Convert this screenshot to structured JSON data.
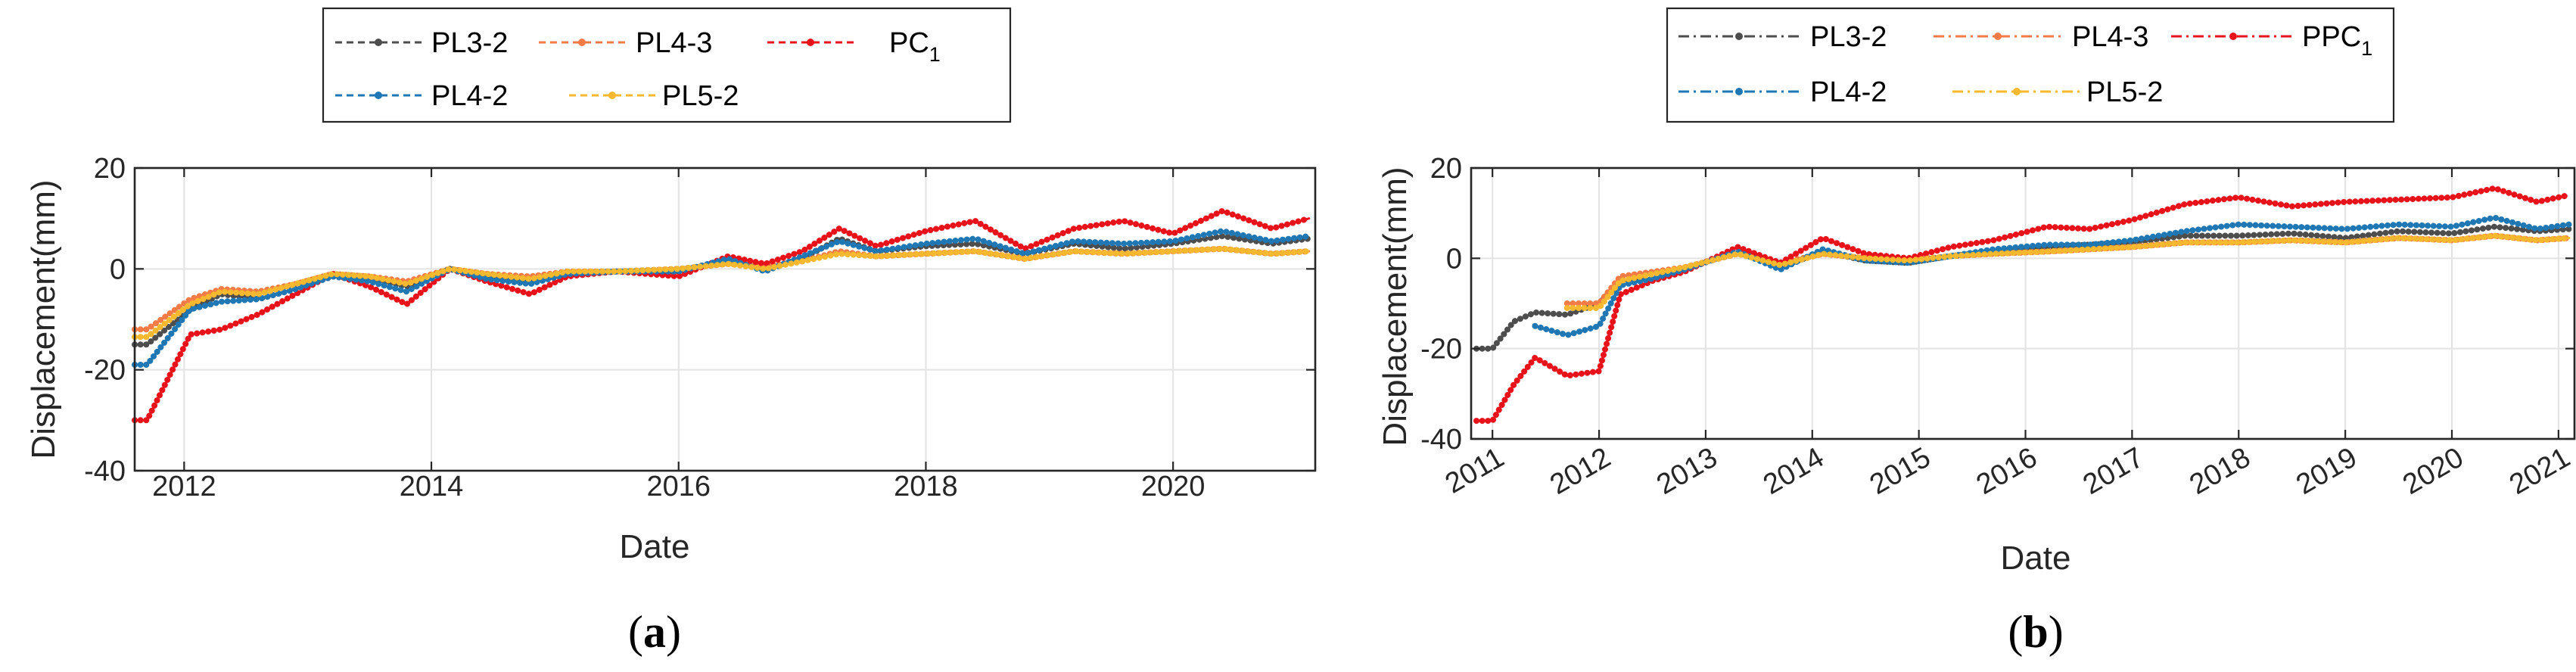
{
  "chart_data": [
    {
      "type": "line",
      "panel_label": "a",
      "title": "",
      "xlabel": "Date",
      "ylabel": "Displacement(mm)",
      "xlim": [
        2011.6,
        2021.15
      ],
      "ylim": [
        -40,
        20
      ],
      "xticks": [
        2012,
        2014,
        2016,
        2018,
        2020
      ],
      "xtick_labels": [
        "2012",
        "2014",
        "2016",
        "2018",
        "2020"
      ],
      "yticks": [
        -40,
        -20,
        0,
        20
      ],
      "ytick_labels": [
        "-40",
        "-20",
        "0",
        "20"
      ],
      "grid": true,
      "legend_position": "top",
      "series": [
        {
          "name": "PL3-2",
          "color": "#4d4d4d",
          "x": [
            2011.6,
            2011.7,
            2012.05,
            2012.3,
            2012.6,
            2012.9,
            2013.2,
            2013.5,
            2013.8,
            2014.15,
            2014.45,
            2014.8,
            2015.1,
            2015.5,
            2016.0,
            2016.4,
            2016.7,
            2017.0,
            2017.3,
            2017.6,
            2018.0,
            2018.4,
            2018.8,
            2019.2,
            2019.6,
            2020.0,
            2020.4,
            2020.8,
            2021.1
          ],
          "y": [
            -15.0,
            -15.0,
            -8.0,
            -5.0,
            -6.0,
            -4.0,
            -1.5,
            -2.0,
            -3.5,
            0.0,
            -1.5,
            -2.5,
            -1.0,
            -0.5,
            -0.5,
            1.5,
            0.0,
            2.0,
            6.0,
            3.5,
            4.5,
            5.0,
            3.0,
            5.0,
            4.0,
            5.0,
            6.5,
            5.0,
            6.0
          ]
        },
        {
          "name": "PL4-3",
          "color": "#f47b45",
          "x": [
            2011.6,
            2011.7,
            2012.05,
            2012.3,
            2012.6,
            2012.9,
            2013.2,
            2013.5,
            2013.8,
            2014.15,
            2014.45,
            2014.8,
            2015.1,
            2015.5,
            2016.0,
            2016.4,
            2016.7,
            2017.0,
            2017.3,
            2017.6,
            2018.0,
            2018.4,
            2018.8,
            2019.2,
            2019.6,
            2020.0,
            2020.4,
            2020.8,
            2021.1
          ],
          "y": [
            -12.0,
            -12.0,
            -6.0,
            -4.0,
            -4.5,
            -3.0,
            -1.0,
            -1.5,
            -2.5,
            0.0,
            -1.0,
            -1.5,
            -0.5,
            -0.5,
            0.0,
            1.0,
            0.5,
            1.5,
            3.5,
            2.5,
            3.0,
            3.5,
            2.0,
            3.5,
            3.0,
            3.5,
            4.0,
            3.0,
            3.5
          ]
        },
        {
          "name": "PC",
          "name_subscript": "1",
          "color": "#e8121b",
          "x": [
            2011.6,
            2011.7,
            2012.05,
            2012.3,
            2012.6,
            2012.9,
            2013.2,
            2013.5,
            2013.8,
            2014.15,
            2014.45,
            2014.8,
            2015.1,
            2015.5,
            2016.0,
            2016.4,
            2016.7,
            2017.0,
            2017.3,
            2017.6,
            2018.0,
            2018.4,
            2018.8,
            2019.2,
            2019.6,
            2020.0,
            2020.4,
            2020.8,
            2021.1
          ],
          "y": [
            -30.0,
            -30.0,
            -13.0,
            -12.0,
            -9.0,
            -5.0,
            -1.0,
            -3.5,
            -7.0,
            0.0,
            -2.5,
            -5.0,
            -1.5,
            -0.5,
            -1.5,
            2.5,
            1.0,
            3.5,
            8.0,
            4.5,
            7.5,
            9.5,
            4.0,
            8.0,
            9.5,
            7.0,
            11.5,
            8.0,
            10.0
          ]
        },
        {
          "name": "PL4-2",
          "color": "#1f77b4",
          "x": [
            2011.6,
            2011.7,
            2012.05,
            2012.3,
            2012.6,
            2012.9,
            2013.2,
            2013.5,
            2013.8,
            2014.15,
            2014.45,
            2014.8,
            2015.1,
            2015.5,
            2016.0,
            2016.4,
            2016.7,
            2017.0,
            2017.3,
            2017.6,
            2018.0,
            2018.4,
            2018.8,
            2019.2,
            2019.6,
            2020.0,
            2020.4,
            2020.8,
            2021.1
          ],
          "y": [
            -19.0,
            -19.0,
            -8.0,
            -6.5,
            -6.0,
            -4.0,
            -1.5,
            -2.5,
            -4.5,
            0.0,
            -2.0,
            -3.0,
            -1.0,
            -0.5,
            -0.5,
            2.0,
            -0.5,
            2.5,
            5.5,
            3.5,
            5.0,
            6.0,
            3.0,
            5.5,
            5.0,
            5.5,
            7.5,
            5.5,
            6.5
          ]
        },
        {
          "name": "PL5-2",
          "color": "#f5b82e",
          "x": [
            2011.6,
            2011.7,
            2012.05,
            2012.3,
            2012.6,
            2012.9,
            2013.2,
            2013.5,
            2013.8,
            2014.15,
            2014.45,
            2014.8,
            2015.1,
            2015.5,
            2016.0,
            2016.4,
            2016.7,
            2017.0,
            2017.3,
            2017.6,
            2018.0,
            2018.4,
            2018.8,
            2019.2,
            2019.6,
            2020.0,
            2020.4,
            2020.8,
            2021.1
          ],
          "y": [
            -13.5,
            -13.5,
            -7.0,
            -4.5,
            -5.0,
            -3.0,
            -1.0,
            -1.5,
            -3.0,
            0.0,
            -1.0,
            -2.0,
            -0.5,
            -0.5,
            0.0,
            1.0,
            0.0,
            1.5,
            3.0,
            2.5,
            3.0,
            3.5,
            2.0,
            3.5,
            3.0,
            3.5,
            4.0,
            3.0,
            3.5
          ]
        }
      ]
    },
    {
      "type": "line",
      "panel_label": "b",
      "title": "",
      "xlabel": "Date",
      "ylabel": "Displacement(mm)",
      "xlim": [
        2010.8,
        2021.15
      ],
      "ylim": [
        -40,
        20
      ],
      "xticks": [
        2011,
        2012,
        2013,
        2014,
        2015,
        2016,
        2017,
        2018,
        2019,
        2020,
        2021
      ],
      "xtick_labels": [
        "2011",
        "2012",
        "2013",
        "2014",
        "2015",
        "2016",
        "2017",
        "2018",
        "2019",
        "2020",
        "2021"
      ],
      "yticks": [
        -40,
        -20,
        0,
        20
      ],
      "ytick_labels": [
        "-40",
        "-20",
        "0",
        "20"
      ],
      "grid": true,
      "legend_position": "top",
      "series": [
        {
          "name": "PL3-2",
          "color": "#4d4d4d",
          "x": [
            2010.85,
            2011.0,
            2011.2,
            2011.4,
            2011.7,
            2012.0,
            2012.2,
            2012.5,
            2012.8,
            2013.3,
            2013.7,
            2014.1,
            2014.5,
            2014.9,
            2015.3,
            2015.7,
            2016.2,
            2016.6,
            2017.0,
            2017.5,
            2018.0,
            2018.5,
            2019.0,
            2019.5,
            2020.0,
            2020.4,
            2020.8,
            2021.1
          ],
          "y": [
            -20.0,
            -20.0,
            -14.0,
            -12.0,
            -12.5,
            -10.0,
            -5.0,
            -4.5,
            -2.5,
            1.5,
            -2.0,
            1.5,
            -0.5,
            -1.0,
            0.5,
            1.5,
            2.5,
            3.0,
            3.5,
            5.0,
            5.0,
            5.5,
            4.5,
            6.0,
            5.5,
            7.0,
            6.0,
            6.5
          ]
        },
        {
          "name": "PL4-3",
          "color": "#f47b45",
          "x": [
            2010.85,
            2011.0,
            2011.2,
            2011.4,
            2011.7,
            2012.0,
            2012.2,
            2012.5,
            2012.8,
            2013.3,
            2013.7,
            2014.1,
            2014.5,
            2014.9,
            2015.3,
            2015.7,
            2016.2,
            2016.6,
            2017.0,
            2017.5,
            2018.0,
            2018.5,
            2019.0,
            2019.5,
            2020.0,
            2020.4,
            2020.8,
            2021.1
          ],
          "y": [
            null,
            null,
            null,
            null,
            -10.0,
            -10.0,
            -4.0,
            -3.0,
            -2.0,
            1.0,
            -1.0,
            1.0,
            0.0,
            -0.5,
            0.5,
            1.0,
            1.5,
            2.0,
            2.5,
            3.5,
            3.5,
            4.0,
            3.5,
            4.5,
            4.0,
            5.0,
            4.0,
            4.5
          ]
        },
        {
          "name": "PPC",
          "name_subscript": "1",
          "color": "#e8121b",
          "x": [
            2010.85,
            2011.0,
            2011.2,
            2011.4,
            2011.7,
            2012.0,
            2012.2,
            2012.5,
            2012.8,
            2013.3,
            2013.7,
            2014.1,
            2014.5,
            2014.9,
            2015.3,
            2015.7,
            2016.2,
            2016.6,
            2017.0,
            2017.5,
            2018.0,
            2018.5,
            2019.0,
            2019.5,
            2020.0,
            2020.4,
            2020.8,
            2021.1
          ],
          "y": [
            -36.0,
            -36.0,
            -28.0,
            -22.0,
            -26.0,
            -25.0,
            -8.0,
            -5.0,
            -3.0,
            2.5,
            -1.0,
            4.5,
            1.0,
            0.0,
            2.5,
            4.0,
            7.0,
            6.5,
            8.5,
            12.0,
            13.5,
            11.5,
            12.5,
            13.0,
            13.5,
            15.5,
            12.5,
            14.0
          ]
        },
        {
          "name": "PL4-2",
          "color": "#1f77b4",
          "x": [
            2010.85,
            2011.0,
            2011.2,
            2011.4,
            2011.7,
            2012.0,
            2012.2,
            2012.5,
            2012.8,
            2013.3,
            2013.7,
            2014.1,
            2014.5,
            2014.9,
            2015.3,
            2015.7,
            2016.2,
            2016.6,
            2017.0,
            2017.5,
            2018.0,
            2018.5,
            2019.0,
            2019.5,
            2020.0,
            2020.4,
            2020.8,
            2021.1
          ],
          "y": [
            null,
            null,
            null,
            -15.0,
            -17.0,
            -15.0,
            -6.0,
            -4.5,
            -2.5,
            1.5,
            -2.5,
            2.0,
            -0.5,
            -1.0,
            0.5,
            2.0,
            3.0,
            3.0,
            4.0,
            6.0,
            7.5,
            7.0,
            6.5,
            7.5,
            7.0,
            9.0,
            6.5,
            7.5
          ]
        },
        {
          "name": "PL5-2",
          "color": "#f5b82e",
          "x": [
            2010.85,
            2011.0,
            2011.2,
            2011.4,
            2011.7,
            2012.0,
            2012.2,
            2012.5,
            2012.8,
            2013.3,
            2013.7,
            2014.1,
            2014.5,
            2014.9,
            2015.3,
            2015.7,
            2016.2,
            2016.6,
            2017.0,
            2017.5,
            2018.0,
            2018.5,
            2019.0,
            2019.5,
            2020.0,
            2020.4,
            2020.8,
            2021.1
          ],
          "y": [
            null,
            null,
            null,
            null,
            -11.0,
            -11.0,
            -5.0,
            -3.5,
            -2.0,
            1.0,
            -1.5,
            1.0,
            0.0,
            -0.5,
            0.5,
            1.0,
            1.5,
            2.0,
            2.5,
            3.5,
            3.5,
            4.0,
            3.5,
            4.5,
            4.0,
            5.0,
            4.0,
            4.5
          ]
        }
      ]
    }
  ]
}
